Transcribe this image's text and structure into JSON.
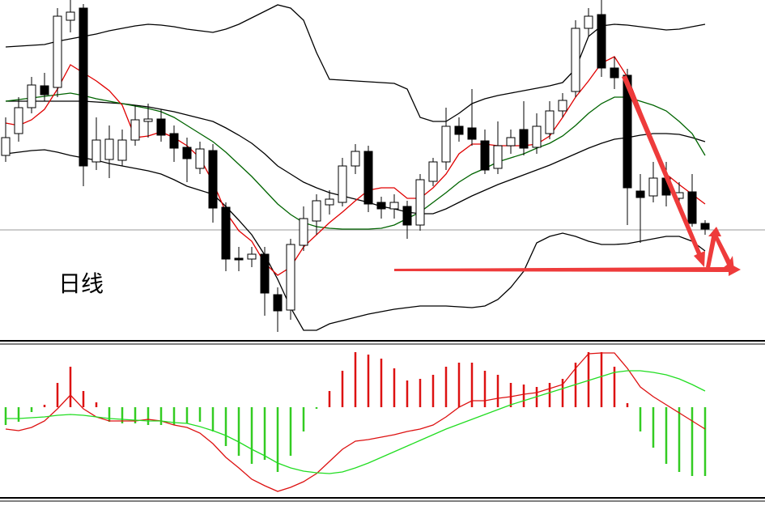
{
  "chart_data": [
    {
      "type": "candlestick",
      "annotation": "日线",
      "categories": [
        null,
        null,
        null,
        null,
        null,
        null,
        null,
        null,
        null,
        null,
        null,
        null,
        null,
        null,
        null,
        null,
        null,
        null,
        null,
        null,
        null,
        null,
        null,
        null,
        null,
        null,
        null,
        null,
        null,
        null,
        null,
        null,
        null,
        null,
        null,
        null,
        null,
        null,
        null,
        null,
        null,
        null,
        null,
        null,
        null,
        null,
        null,
        null,
        null,
        null,
        null,
        null,
        null,
        null,
        null
      ],
      "ohlc": [
        [
          228,
          275,
          220,
          250
        ],
        [
          255,
          300,
          245,
          287
        ],
        [
          287,
          325,
          280,
          315
        ],
        [
          314,
          330,
          295,
          303
        ],
        [
          312,
          410,
          300,
          400
        ],
        [
          395,
          420,
          380,
          405
        ],
        [
          410,
          415,
          190,
          215
        ],
        [
          220,
          275,
          210,
          247
        ],
        [
          223,
          265,
          200,
          248
        ],
        [
          222,
          260,
          215,
          247
        ],
        [
          247,
          290,
          240,
          272
        ],
        [
          270,
          292,
          250,
          273
        ],
        [
          273,
          285,
          245,
          253
        ],
        [
          255,
          265,
          220,
          237
        ],
        [
          238,
          250,
          195,
          224
        ],
        [
          212,
          245,
          205,
          236
        ],
        [
          234,
          242,
          145,
          163
        ],
        [
          164,
          170,
          85,
          100
        ],
        [
          101,
          115,
          85,
          99
        ],
        [
          100,
          115,
          90,
          106
        ],
        [
          106,
          115,
          30,
          58
        ],
        [
          56,
          65,
          10,
          36
        ],
        [
          37,
          125,
          25,
          118
        ],
        [
          117,
          165,
          110,
          150
        ],
        [
          147,
          180,
          130,
          172
        ],
        [
          167,
          185,
          155,
          174
        ],
        [
          170,
          225,
          165,
          215
        ],
        [
          215,
          242,
          205,
          233
        ],
        [
          233,
          240,
          158,
          168
        ],
        [
          170,
          177,
          150,
          162
        ],
        [
          162,
          180,
          150,
          170
        ],
        [
          165,
          172,
          125,
          142
        ],
        [
          142,
          205,
          135,
          198
        ],
        [
          196,
          225,
          190,
          220
        ],
        [
          220,
          287,
          210,
          264
        ],
        [
          264,
          275,
          245,
          254
        ],
        [
          262,
          310,
          240,
          248
        ],
        [
          246,
          260,
          205,
          210
        ],
        [
          212,
          270,
          205,
          240
        ],
        [
          240,
          260,
          230,
          250
        ],
        [
          260,
          295,
          228,
          237
        ],
        [
          238,
          280,
          230,
          264
        ],
        [
          255,
          295,
          248,
          283
        ],
        [
          283,
          305,
          275,
          296
        ],
        [
          307,
          395,
          300,
          385
        ],
        [
          385,
          410,
          375,
          400
        ],
        [
          402,
          420,
          325,
          336
        ],
        [
          336,
          350,
          310,
          324
        ],
        [
          327,
          335,
          142,
          188
        ],
        [
          184,
          205,
          120,
          176
        ],
        [
          178,
          220,
          170,
          200
        ],
        [
          200,
          220,
          165,
          179
        ],
        [
          175,
          195,
          165,
          182
        ],
        [
          183,
          205,
          140,
          144
        ],
        [
          144,
          148,
          130,
          137
        ]
      ],
      "up_color": "#ffffff",
      "down_color": "#000000",
      "series": [
        {
          "color": "#000000",
          "values": [
            362,
            363,
            364,
            365,
            369,
            372,
            375,
            378,
            382,
            385,
            388,
            390,
            389,
            387,
            384,
            382,
            380,
            384,
            390,
            398,
            406,
            414,
            410,
            395,
            355,
            322,
            321,
            320,
            319,
            318,
            317,
            310,
            275,
            270,
            270,
            280,
            292,
            298,
            302,
            305,
            308,
            311,
            314,
            318,
            335,
            375,
            388,
            390,
            389,
            387,
            385,
            383,
            384,
            387,
            390
          ]
        },
        {
          "color": "#000000",
          "values": [
            295,
            295,
            295,
            295,
            295,
            295,
            295,
            294,
            293,
            292,
            290,
            288,
            285,
            282,
            278,
            274,
            270,
            262,
            253,
            243,
            230,
            215,
            205,
            195,
            188,
            182,
            178,
            174,
            170,
            165,
            162,
            158,
            156,
            156,
            162,
            170,
            178,
            185,
            192,
            198,
            204,
            210,
            216,
            223,
            230,
            237,
            243,
            248,
            250,
            253,
            255,
            255,
            254,
            250,
            245
          ]
        },
        {
          "color": "#000000",
          "values": [
            230,
            232,
            234,
            235,
            232,
            228,
            225,
            222,
            218,
            215,
            212,
            209,
            205,
            198,
            190,
            185,
            180,
            165,
            148,
            130,
            105,
            75,
            40,
            12,
            12,
            20,
            24,
            28,
            32,
            35,
            38,
            40,
            42,
            42,
            42,
            41,
            40,
            42,
            50,
            65,
            85,
            120,
            128,
            132,
            128,
            122,
            118,
            118,
            119,
            122,
            125,
            128,
            128,
            122,
            110
          ]
        },
        {
          "color": "#006400",
          "values": [
            295,
            297,
            299,
            301,
            303,
            305,
            302,
            298,
            295,
            292,
            289,
            286,
            282,
            275,
            265,
            255,
            245,
            232,
            217,
            202,
            185,
            168,
            155,
            145,
            140,
            138,
            137,
            137,
            137,
            138,
            142,
            150,
            158,
            170,
            182,
            195,
            205,
            212,
            220,
            225,
            230,
            237,
            243,
            252,
            265,
            280,
            292,
            300,
            300,
            295,
            290,
            283,
            270,
            255,
            228
          ]
        },
        {
          "color": "#e00000",
          "values": [
            268,
            265,
            272,
            285,
            310,
            340,
            330,
            320,
            308,
            290,
            250,
            252,
            257,
            250,
            240,
            225,
            195,
            158,
            135,
            122,
            95,
            80,
            90,
            115,
            130,
            145,
            158,
            172,
            185,
            188,
            188,
            175,
            175,
            188,
            205,
            230,
            242,
            242,
            240,
            240,
            240,
            242,
            252,
            275,
            300,
            320,
            342,
            350,
            325,
            285,
            240,
            205,
            192,
            180,
            168
          ]
        }
      ],
      "price_line": 136,
      "price_line_color": "#999999",
      "ylim": [
        0,
        420
      ]
    },
    {
      "type": "macd",
      "categories": [
        null,
        null,
        null,
        null,
        null,
        null,
        null,
        null,
        null,
        null,
        null,
        null,
        null,
        null,
        null,
        null,
        null,
        null,
        null,
        null,
        null,
        null,
        null,
        null,
        null,
        null,
        null,
        null,
        null,
        null,
        null,
        null,
        null,
        null,
        null,
        null,
        null,
        null,
        null,
        null,
        null,
        null,
        null,
        null,
        null,
        null,
        null,
        null,
        null,
        null,
        null,
        null,
        null,
        null,
        null
      ],
      "values": [
        -22,
        -18,
        -6,
        3,
        30,
        50,
        20,
        6,
        -18,
        -20,
        -20,
        -22,
        -22,
        -22,
        -20,
        -18,
        -30,
        -48,
        -60,
        -70,
        -65,
        -80,
        -60,
        -30,
        -2,
        20,
        45,
        68,
        65,
        60,
        48,
        33,
        35,
        40,
        50,
        55,
        55,
        45,
        40,
        30,
        28,
        25,
        30,
        35,
        55,
        68,
        68,
        50,
        5,
        -30,
        -50,
        -70,
        -80,
        -85,
        -85
      ],
      "positive_color": "#dd1111",
      "negative_color": "#33cc22",
      "series": [
        {
          "color": "#dd1111",
          "values": [
            -27,
            -29,
            -25,
            -17,
            -2,
            15,
            -2,
            -12,
            -17,
            -17,
            -17,
            -15,
            -17,
            -22,
            -25,
            -32,
            -45,
            -62,
            -75,
            -89,
            -97,
            -104,
            -99,
            -92,
            -82,
            -67,
            -52,
            -42,
            -40,
            -37,
            -34,
            -30,
            -27,
            -22,
            -12,
            0,
            8,
            8,
            11,
            13,
            16,
            18,
            23,
            28,
            48,
            66,
            67,
            67,
            48,
            25,
            13,
            3,
            -7,
            -17,
            -27
          ]
        },
        {
          "color": "#22dd22",
          "values": [
            -14,
            -14,
            -13,
            -12,
            -10,
            -9,
            -10,
            -12,
            -14,
            -15,
            -16,
            -17,
            -17,
            -19,
            -20,
            -24,
            -29,
            -35,
            -43,
            -52,
            -60,
            -69,
            -75,
            -79,
            -81,
            -82,
            -80,
            -75,
            -69,
            -62,
            -55,
            -48,
            -41,
            -34,
            -27,
            -21,
            -15,
            -9,
            -3,
            3,
            8,
            13,
            18,
            23,
            28,
            33,
            38,
            43,
            45,
            45,
            43,
            40,
            35,
            28,
            20
          ]
        }
      ],
      "ylim": [
        -112,
        78
      ]
    }
  ]
}
